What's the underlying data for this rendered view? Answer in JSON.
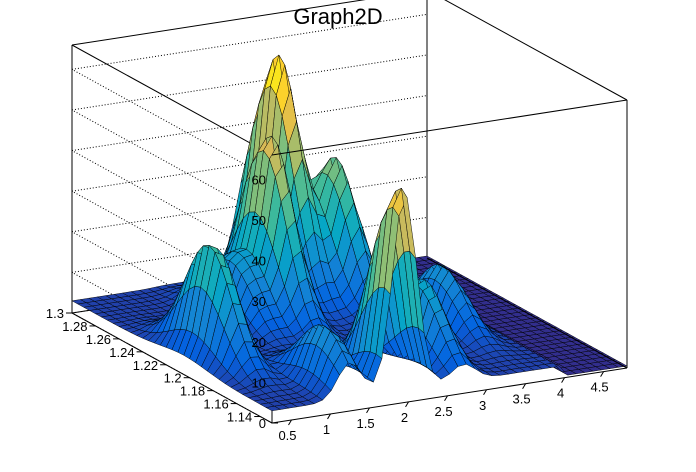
{
  "chart_data": {
    "type": "surface",
    "title": "Graph2D",
    "x_ticks": [
      "0.5",
      "1",
      "1.5",
      "2",
      "2.5",
      "3",
      "3.5",
      "4",
      "4.5"
    ],
    "y_ticks": [
      "1.14",
      "1.16",
      "1.18",
      "1.2",
      "1.22",
      "1.24",
      "1.26",
      "1.28",
      "1.3"
    ],
    "z_ticks": [
      "0",
      "10",
      "20",
      "30",
      "40",
      "50",
      "60"
    ],
    "xlim": [
      0.25,
      4.8
    ],
    "ylim": [
      1.13,
      1.3
    ],
    "zlim": [
      0,
      66
    ],
    "grid": true,
    "palette": [
      "#352a87",
      "#0363e1",
      "#1485d4",
      "#06a7c6",
      "#38b99e",
      "#92bf73",
      "#d9ba56",
      "#fcce2e",
      "#f9fb0e"
    ],
    "peaks": [
      {
        "x": 1.95,
        "y": 1.135,
        "z": 50
      },
      {
        "x": 2.5,
        "y": 1.275,
        "z": 58
      },
      {
        "x": 1.95,
        "y": 1.245,
        "z": 45
      },
      {
        "x": 0.62,
        "y": 1.205,
        "z": 29
      },
      {
        "x": 2.95,
        "y": 1.255,
        "z": 34
      },
      {
        "x": 2.7,
        "y": 1.165,
        "z": 20
      },
      {
        "x": 1.25,
        "y": 1.15,
        "z": 15
      },
      {
        "x": 1.5,
        "y": 1.245,
        "z": 16
      },
      {
        "x": 3.5,
        "y": 1.2,
        "z": 15
      }
    ]
  }
}
